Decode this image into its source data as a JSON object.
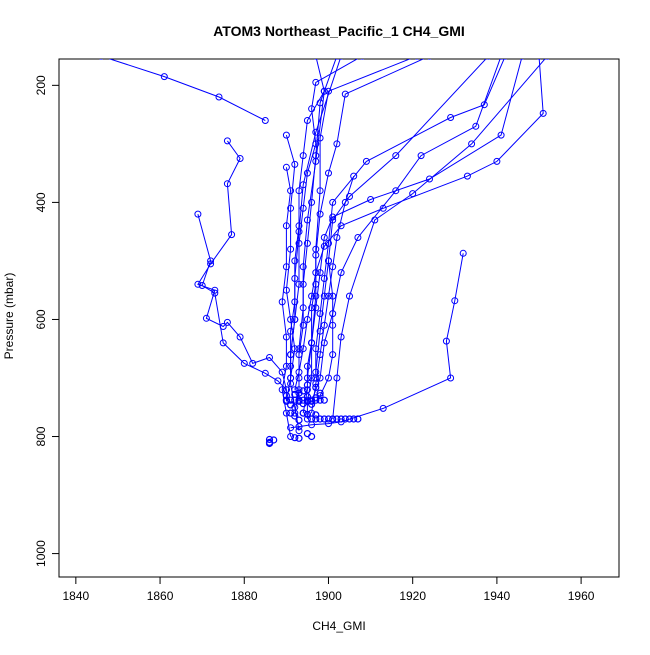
{
  "chart_data": {
    "type": "line",
    "title": "ATOM3 Northeast_Pacific_1 CH4_GMI",
    "xlabel": "CH4_GMI",
    "ylabel": "Pressure (mbar)",
    "xlim": [
      1836,
      1969
    ],
    "ylim": [
      1040,
      155
    ],
    "y_reversed": true,
    "grid": false,
    "x_ticks": [
      1840,
      1860,
      1880,
      1900,
      1920,
      1940,
      1960
    ],
    "y_ticks": [
      200,
      400,
      600,
      800,
      1000
    ],
    "marker": "open-circle",
    "series_color": "#0000FF",
    "series": [
      {
        "points": [
          [
            1952,
            150
          ],
          [
            1934,
            300
          ],
          [
            1920,
            385
          ],
          [
            1911,
            430
          ],
          [
            1905,
            560
          ],
          [
            1903,
            630
          ],
          [
            1902,
            700
          ],
          [
            1901,
            770
          ]
        ]
      },
      {
        "points": [
          [
            1921,
            150
          ],
          [
            1900,
            210
          ],
          [
            1898,
            290
          ],
          [
            1898,
            380
          ],
          [
            1897,
            480
          ],
          [
            1897,
            560
          ],
          [
            1896,
            640
          ],
          [
            1896,
            700
          ],
          [
            1895,
            740
          ],
          [
            1895,
            770
          ]
        ]
      },
      {
        "points": [
          [
            1938,
            150
          ],
          [
            1916,
            320
          ],
          [
            1905,
            390
          ],
          [
            1901,
            430
          ],
          [
            1900,
            500
          ],
          [
            1899,
            560
          ],
          [
            1898,
            620
          ],
          [
            1897,
            690
          ]
        ]
      },
      {
        "points": [
          [
            1890,
            285
          ],
          [
            1892,
            335
          ],
          [
            1891,
            410
          ],
          [
            1891,
            480
          ],
          [
            1890,
            550
          ],
          [
            1891,
            600
          ],
          [
            1892,
            650
          ],
          [
            1891,
            700
          ],
          [
            1890,
            740
          ]
        ]
      },
      {
        "points": [
          [
            1876,
            295
          ],
          [
            1879,
            325
          ],
          [
            1876,
            368
          ],
          [
            1877,
            455
          ],
          [
            1872,
            505
          ],
          [
            1869,
            540
          ],
          [
            1873,
            550
          ],
          [
            1871,
            598
          ],
          [
            1875,
            612
          ],
          [
            1876,
            605
          ],
          [
            1879,
            630
          ],
          [
            1882,
            675
          ],
          [
            1886,
            665
          ],
          [
            1889,
            690
          ],
          [
            1890,
            720
          ],
          [
            1890,
            738
          ]
        ]
      },
      {
        "points": [
          [
            1846,
            150
          ],
          [
            1861,
            185
          ],
          [
            1874,
            220
          ],
          [
            1885,
            260
          ]
        ]
      },
      {
        "points": [
          [
            1950,
            150
          ],
          [
            1951,
            248
          ],
          [
            1940,
            330
          ],
          [
            1933,
            355
          ],
          [
            1913,
            410
          ],
          [
            1903,
            440
          ],
          [
            1899,
            475
          ],
          [
            1897,
            520
          ],
          [
            1896,
            560
          ],
          [
            1895,
            600
          ],
          [
            1894,
            650
          ],
          [
            1893,
            690
          ],
          [
            1892,
            720
          ]
        ]
      },
      {
        "points": [
          [
            1908,
            150
          ],
          [
            1897,
            195
          ],
          [
            1896,
            240
          ],
          [
            1897,
            300
          ],
          [
            1895,
            350
          ],
          [
            1894,
            410
          ],
          [
            1893,
            470
          ],
          [
            1893,
            540
          ],
          [
            1892,
            600
          ],
          [
            1891,
            660
          ],
          [
            1891,
            700
          ]
        ]
      },
      {
        "points": [
          [
            1924,
            150
          ],
          [
            1904,
            215
          ],
          [
            1902,
            300
          ],
          [
            1900,
            350
          ],
          [
            1898,
            420
          ],
          [
            1897,
            490
          ],
          [
            1897,
            540
          ],
          [
            1896,
            580
          ],
          [
            1896,
            640
          ],
          [
            1895,
            680
          ],
          [
            1895,
            720
          ],
          [
            1894,
            760
          ]
        ]
      },
      {
        "points": [
          [
            1942,
            150
          ],
          [
            1937,
            233
          ],
          [
            1929,
            255
          ],
          [
            1909,
            330
          ],
          [
            1901,
            400
          ],
          [
            1900,
            470
          ],
          [
            1899,
            530
          ],
          [
            1898,
            590
          ],
          [
            1897,
            650
          ],
          [
            1897,
            700
          ]
        ]
      },
      {
        "points": [
          [
            1946,
            150
          ],
          [
            1941,
            285
          ],
          [
            1924,
            360
          ],
          [
            1910,
            395
          ],
          [
            1901,
            425
          ],
          [
            1899,
            460
          ],
          [
            1898,
            520
          ],
          [
            1897,
            580
          ],
          [
            1896,
            640
          ],
          [
            1895,
            700
          ]
        ]
      },
      {
        "points": [
          [
            1932,
            487
          ],
          [
            1930,
            568
          ],
          [
            1928,
            637
          ],
          [
            1929,
            700
          ],
          [
            1913,
            752
          ],
          [
            1903,
            775
          ],
          [
            1900,
            778
          ],
          [
            1896,
            780
          ],
          [
            1893,
            783
          ],
          [
            1891,
            785
          ]
        ]
      },
      {
        "points": [
          [
            1897,
            150
          ],
          [
            1899,
            210
          ],
          [
            1895,
            260
          ],
          [
            1894,
            320
          ],
          [
            1893,
            380
          ],
          [
            1893,
            440
          ],
          [
            1892,
            500
          ],
          [
            1892,
            570
          ],
          [
            1891,
            620
          ],
          [
            1891,
            680
          ]
        ]
      },
      {
        "points": [
          [
            1902,
            150
          ],
          [
            1898,
            230
          ],
          [
            1897,
            320
          ],
          [
            1896,
            400
          ],
          [
            1895,
            470
          ],
          [
            1894,
            540
          ],
          [
            1894,
            610
          ],
          [
            1893,
            660
          ],
          [
            1893,
            720
          ],
          [
            1892,
            760
          ]
        ]
      },
      {
        "points": [
          [
            1941,
            150
          ],
          [
            1935,
            270
          ],
          [
            1922,
            320
          ],
          [
            1916,
            380
          ],
          [
            1907,
            460
          ],
          [
            1903,
            520
          ],
          [
            1901,
            590
          ],
          [
            1899,
            640
          ],
          [
            1898,
            700
          ],
          [
            1896,
            740
          ]
        ]
      },
      {
        "points": [
          [
            1869,
            420
          ],
          [
            1872,
            500
          ],
          [
            1870,
            542
          ],
          [
            1873,
            555
          ],
          [
            1875,
            640
          ],
          [
            1880,
            675
          ],
          [
            1885,
            692
          ],
          [
            1888,
            705
          ],
          [
            1890,
            720
          ]
        ]
      },
      {
        "points": [
          [
            1900,
            500
          ],
          [
            1901,
            560
          ],
          [
            1901,
            610
          ],
          [
            1901,
            660
          ],
          [
            1900,
            700
          ],
          [
            1898,
            730
          ]
        ]
      },
      {
        "points": [
          [
            1906,
            355
          ],
          [
            1904,
            400
          ],
          [
            1902,
            460
          ],
          [
            1901,
            510
          ],
          [
            1900,
            560
          ],
          [
            1899,
            610
          ],
          [
            1898,
            660
          ],
          [
            1897,
            710
          ],
          [
            1896,
            760
          ]
        ]
      },
      {
        "points": [
          [
            1890,
            340
          ],
          [
            1891,
            380
          ],
          [
            1890,
            440
          ],
          [
            1890,
            510
          ],
          [
            1889,
            570
          ],
          [
            1890,
            630
          ],
          [
            1890,
            680
          ],
          [
            1889,
            720
          ],
          [
            1890,
            760
          ],
          [
            1891,
            800
          ]
        ]
      },
      {
        "points": [
          [
            1899,
            210
          ],
          [
            1897,
            330
          ],
          [
            1895,
            430
          ],
          [
            1894,
            510
          ],
          [
            1894,
            580
          ],
          [
            1893,
            650
          ],
          [
            1893,
            700
          ],
          [
            1893,
            740
          ]
        ]
      },
      {
        "points": [
          [
            1903,
            150
          ],
          [
            1897,
            280
          ],
          [
            1894,
            370
          ],
          [
            1893,
            450
          ],
          [
            1892,
            530
          ],
          [
            1892,
            600
          ],
          [
            1891,
            660
          ],
          [
            1891,
            710
          ],
          [
            1892,
            750
          ],
          [
            1893,
            790
          ]
        ]
      }
    ],
    "scatter_points": [
      [
        1890,
        738
      ],
      [
        1891,
        738
      ],
      [
        1892,
        738
      ],
      [
        1893,
        738
      ],
      [
        1894,
        738
      ],
      [
        1895,
        738
      ],
      [
        1896,
        738
      ],
      [
        1897,
        738
      ],
      [
        1898,
        738
      ],
      [
        1899,
        738
      ],
      [
        1890,
        730
      ],
      [
        1893,
        726
      ],
      [
        1895,
        732
      ],
      [
        1897,
        734
      ],
      [
        1894,
        744
      ],
      [
        1896,
        745
      ],
      [
        1891,
        746
      ],
      [
        1896,
        770
      ],
      [
        1897,
        770
      ],
      [
        1898,
        770
      ],
      [
        1899,
        770
      ],
      [
        1900,
        770
      ],
      [
        1901,
        770
      ],
      [
        1902,
        770
      ],
      [
        1903,
        770
      ],
      [
        1904,
        770
      ],
      [
        1905,
        770
      ],
      [
        1906,
        770
      ],
      [
        1907,
        770
      ],
      [
        1894,
        760
      ],
      [
        1895,
        762
      ],
      [
        1897,
        763
      ],
      [
        1892,
        765
      ],
      [
        1893,
        772
      ],
      [
        1891,
        760
      ],
      [
        1895,
        795
      ],
      [
        1896,
        800
      ],
      [
        1892,
        802
      ],
      [
        1893,
        803
      ],
      [
        1886,
        805
      ],
      [
        1887,
        806
      ],
      [
        1886,
        810
      ],
      [
        1886,
        812
      ],
      [
        1892,
        728
      ],
      [
        1894,
        722
      ],
      [
        1895,
        712
      ],
      [
        1897,
        716
      ],
      [
        1898,
        726
      ]
    ]
  }
}
